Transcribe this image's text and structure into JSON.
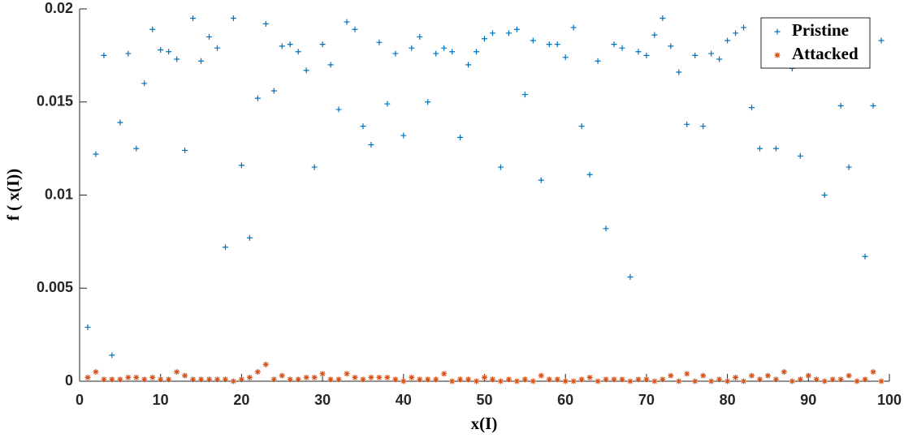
{
  "chart_data": {
    "type": "scatter",
    "xlabel": "x(I)",
    "ylabel": "f ( x(I))",
    "x": [
      1,
      2,
      3,
      4,
      5,
      6,
      7,
      8,
      9,
      10,
      11,
      12,
      13,
      14,
      15,
      16,
      17,
      18,
      19,
      20,
      21,
      22,
      23,
      24,
      25,
      26,
      27,
      28,
      29,
      30,
      31,
      32,
      33,
      34,
      35,
      36,
      37,
      38,
      39,
      40,
      41,
      42,
      43,
      44,
      45,
      46,
      47,
      48,
      49,
      50,
      51,
      52,
      53,
      54,
      55,
      56,
      57,
      58,
      59,
      60,
      61,
      62,
      63,
      64,
      65,
      66,
      67,
      68,
      69,
      70,
      71,
      72,
      73,
      74,
      75,
      76,
      77,
      78,
      79,
      80,
      81,
      82,
      83,
      84,
      85,
      86,
      87,
      88,
      89,
      90,
      91,
      92,
      93,
      94,
      95,
      96,
      97,
      98,
      99
    ],
    "series": [
      {
        "name": "Pristine",
        "color": "#0072bd",
        "marker": "+",
        "values": [
          0.0029,
          0.0122,
          0.0175,
          0.0014,
          0.0139,
          0.0176,
          0.0125,
          0.016,
          0.0189,
          0.0178,
          0.0177,
          0.0173,
          0.0124,
          0.0195,
          0.0172,
          0.0185,
          0.0179,
          0.0072,
          0.0195,
          0.0116,
          0.0077,
          0.0152,
          0.0192,
          0.0156,
          0.018,
          0.0181,
          0.0177,
          0.0167,
          0.0115,
          0.0181,
          0.017,
          0.0146,
          0.0193,
          0.0189,
          0.0137,
          0.0127,
          0.0182,
          0.0149,
          0.0176,
          0.0132,
          0.0179,
          0.0185,
          0.015,
          0.0176,
          0.0179,
          0.0177,
          0.0131,
          0.017,
          0.0177,
          0.0184,
          0.0187,
          0.0115,
          0.0187,
          0.0189,
          0.0154,
          0.0183,
          0.0108,
          0.0181,
          0.0181,
          0.0174,
          0.019,
          0.0137,
          0.0111,
          0.0172,
          0.0082,
          0.0181,
          0.0179,
          0.0056,
          0.0177,
          0.0175,
          0.0186,
          0.0195,
          0.018,
          0.0166,
          0.0138,
          0.0175,
          0.0137,
          0.0176,
          0.0173,
          0.0183,
          0.0187,
          0.019,
          0.0147,
          0.0125,
          0.0188,
          0.0125,
          0.018,
          0.0168,
          0.0121,
          0.018,
          0.0185,
          0.01,
          0.0178,
          0.0148,
          0.0115,
          0.0183,
          0.0067,
          0.0148,
          0.0183
        ]
      },
      {
        "name": "Attacked",
        "color": "#d95319",
        "marker": "*",
        "values": [
          0.0002,
          0.0005,
          0.0001,
          0.0001,
          0.0001,
          0.0002,
          0.0002,
          0.0001,
          0.0002,
          0.0001,
          0.0001,
          0.0005,
          0.0003,
          0.0001,
          0.0001,
          0.0001,
          0.0001,
          0.0001,
          0.0,
          0.0001,
          0.0002,
          0.0005,
          0.0009,
          0.0001,
          0.0003,
          0.0001,
          0.0001,
          0.0002,
          0.0002,
          0.0004,
          0.0001,
          0.0001,
          0.0004,
          0.0002,
          0.0001,
          0.0002,
          0.0002,
          0.0002,
          0.0001,
          0.0,
          0.0002,
          0.0001,
          0.0001,
          0.0001,
          0.0004,
          0.0,
          0.0001,
          0.0001,
          0.0,
          0.0002,
          0.0001,
          0.0,
          0.0001,
          0.0,
          0.0001,
          0.0,
          0.0003,
          0.0001,
          0.0001,
          0.0,
          0.0,
          0.0001,
          0.0002,
          0.0,
          0.0001,
          0.0001,
          0.0001,
          0.0,
          0.0001,
          0.0001,
          0.0,
          0.0001,
          0.0003,
          0.0,
          0.0004,
          0.0,
          0.0003,
          0.0,
          0.0001,
          0.0,
          0.0002,
          0.0,
          0.0003,
          0.0001,
          0.0003,
          0.0001,
          0.0005,
          0.0,
          0.0001,
          0.0003,
          0.0001,
          0.0,
          0.0001,
          0.0001,
          0.0003,
          0.0,
          0.0001,
          0.0005,
          0.0
        ]
      }
    ],
    "xlim": [
      0,
      100
    ],
    "xticks": [
      0,
      10,
      20,
      30,
      40,
      50,
      60,
      70,
      80,
      90,
      100
    ],
    "ylim": [
      0,
      0.02
    ],
    "yticks": [
      0,
      0.005,
      0.01,
      0.015,
      0.02
    ],
    "legend": "upper right"
  }
}
